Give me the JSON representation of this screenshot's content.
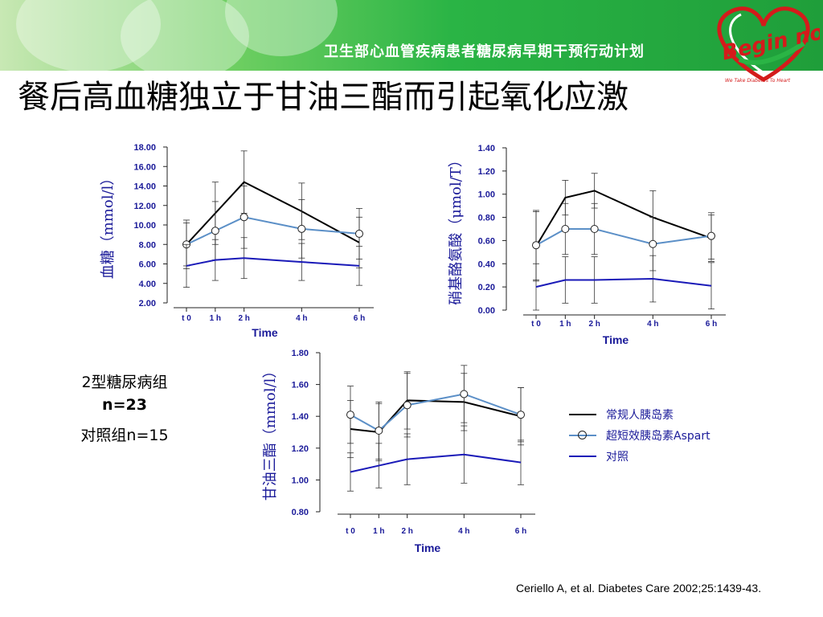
{
  "header": {
    "text": "卫生部心血管疾病患者糖尿病早期干预行动计划",
    "logo_main": "Begin now!",
    "logo_tagline": "We Take Diabetes To Heart"
  },
  "title": "餐后高血糖独立于甘油三酯而引起氧化应激",
  "groups": {
    "diabetes": "2型糖尿病组",
    "n_diabetes": "n=23",
    "control": "对照组n=15"
  },
  "legend": [
    {
      "label": "常规人胰岛素",
      "color": "#000000",
      "marker": false
    },
    {
      "label": "超短效胰岛素Aspart",
      "color": "#5b8fc7",
      "marker": true
    },
    {
      "label": "对照",
      "color": "#1a1ab8",
      "marker": false
    }
  ],
  "citation": "Ceriello A, et al. Diabetes Care 2002;25:1439-43.",
  "colors": {
    "regular": "#000000",
    "aspart": "#5b8fc7",
    "control": "#1a1ab8",
    "axis_text": "#1a1a99"
  },
  "chart_data": [
    {
      "type": "line",
      "ylabel": "血糖（mmol/l）",
      "xlabel": "Time",
      "x": [
        "t 0",
        "1 h",
        "2 h",
        "4 h",
        "6 h"
      ],
      "xpos": [
        0,
        1,
        2,
        4,
        6
      ],
      "ylim": [
        2,
        18
      ],
      "yticks": [
        "2.00",
        "4.00",
        "6.00",
        "8.00",
        "10.00",
        "12.00",
        "14.00",
        "16.00",
        "18.00"
      ],
      "series": [
        {
          "key": "regular",
          "values": [
            8.0,
            11.2,
            14.4,
            11.4,
            8.2
          ],
          "errors": [
            2.2,
            3.2,
            3.2,
            2.9,
            2.6
          ],
          "marker": false
        },
        {
          "key": "aspart",
          "values": [
            8.0,
            9.4,
            10.8,
            9.6,
            9.1
          ],
          "errors": [
            2.5,
            3.0,
            3.2,
            3.0,
            2.6
          ],
          "marker": true
        },
        {
          "key": "control",
          "values": [
            5.8,
            6.4,
            6.6,
            6.2,
            5.8
          ],
          "errors": [
            2.2,
            2.1,
            2.1,
            1.9,
            2.0
          ],
          "marker": false
        }
      ]
    },
    {
      "type": "line",
      "ylabel": "硝基酪氨酸（μmol/T）",
      "xlabel": "Time",
      "x": [
        "t 0",
        "1 h",
        "2 h",
        "4 h",
        "6 h"
      ],
      "xpos": [
        0,
        1,
        2,
        4,
        6
      ],
      "ylim": [
        0,
        1.4
      ],
      "yticks": [
        "0.00",
        "0.20",
        "0.40",
        "0.60",
        "0.80",
        "1.00",
        "1.20",
        "1.40"
      ],
      "series": [
        {
          "key": "regular",
          "values": [
            0.55,
            0.97,
            1.03,
            0.8,
            0.62
          ],
          "errors": [
            0.3,
            0.15,
            0.15,
            0.23,
            0.2
          ],
          "marker": false
        },
        {
          "key": "aspart",
          "values": [
            0.56,
            0.7,
            0.7,
            0.57,
            0.64
          ],
          "errors": [
            0.3,
            0.22,
            0.22,
            0.23,
            0.2
          ],
          "marker": true
        },
        {
          "key": "control",
          "values": [
            0.2,
            0.26,
            0.26,
            0.27,
            0.21
          ],
          "errors": [
            0.2,
            0.2,
            0.2,
            0.2,
            0.2
          ],
          "marker": false
        }
      ]
    },
    {
      "type": "line",
      "ylabel": "甘油三酯（mmol/l）",
      "xlabel": "Time",
      "x": [
        "t 0",
        "1 h",
        "2 h",
        "4 h",
        "6 h"
      ],
      "xpos": [
        0,
        1,
        2,
        4,
        6
      ],
      "ylim": [
        0.8,
        1.8
      ],
      "yticks": [
        "0.80",
        "1.00",
        "1.20",
        "1.40",
        "1.60",
        "1.80"
      ],
      "series": [
        {
          "key": "regular",
          "values": [
            1.32,
            1.3,
            1.5,
            1.49,
            1.4
          ],
          "errors": [
            0.18,
            0.18,
            0.18,
            0.18,
            0.18
          ],
          "marker": false
        },
        {
          "key": "aspart",
          "values": [
            1.41,
            1.31,
            1.47,
            1.54,
            1.41
          ],
          "errors": [
            0.18,
            0.18,
            0.2,
            0.18,
            0.17
          ],
          "marker": true
        },
        {
          "key": "control",
          "values": [
            1.05,
            1.09,
            1.13,
            1.16,
            1.11
          ],
          "errors": [
            0.12,
            0.14,
            0.16,
            0.18,
            0.14
          ],
          "marker": false
        }
      ]
    }
  ]
}
